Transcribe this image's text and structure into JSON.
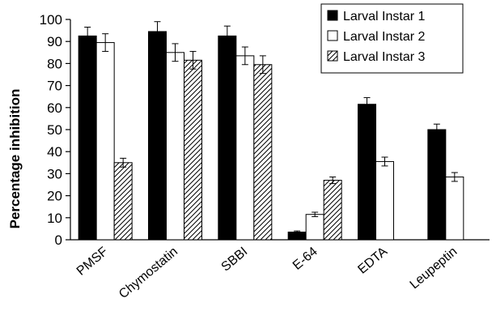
{
  "chart_data": {
    "type": "bar",
    "title": "",
    "xlabel": "",
    "ylabel": "Percentage inhibition",
    "ylim": [
      0,
      100
    ],
    "yticks": [
      0,
      10,
      20,
      30,
      40,
      50,
      60,
      70,
      80,
      90,
      100
    ],
    "categories": [
      "PMSF",
      "Chymostatin",
      "SBBI",
      "E-64",
      "EDTA",
      "Leupeptin"
    ],
    "series": [
      {
        "name": "Larval Instar 1",
        "fill": "#000000",
        "values": [
          92.5,
          94.5,
          92.5,
          3.5,
          61.5,
          50
        ],
        "errors": [
          4,
          4.5,
          4.5,
          0.5,
          3,
          2.5
        ]
      },
      {
        "name": "Larval Instar 2",
        "fill": "#ffffff",
        "values": [
          89.5,
          85,
          83.5,
          11.5,
          35.5,
          28.5
        ],
        "errors": [
          4,
          4,
          4,
          1,
          2,
          2
        ]
      },
      {
        "name": "Larval Instar 3",
        "fill": "hatch",
        "values": [
          35,
          81.5,
          79.5,
          27,
          0,
          0
        ],
        "errors": [
          2,
          4,
          4,
          1.5,
          0,
          0
        ]
      }
    ],
    "legend": "top-right",
    "grid": false
  }
}
